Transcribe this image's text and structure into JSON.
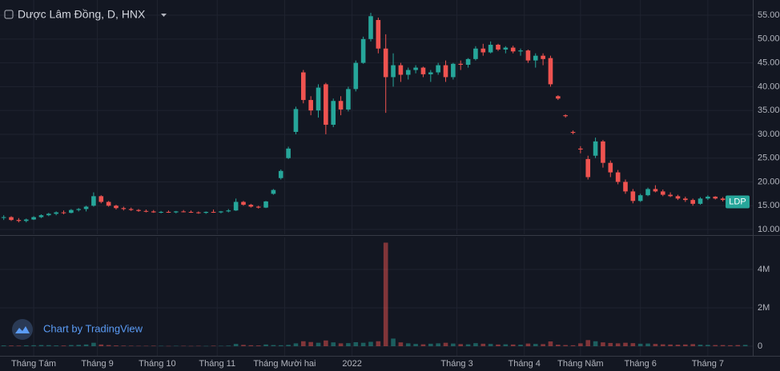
{
  "chart_data": {
    "type": "candlestick",
    "title": "Dược Lâm Đồng, D, HNX",
    "symbol_label": "LDP",
    "watermark": "Chart by TradingView",
    "up_color": "#26a69a",
    "down_color": "#ef5350",
    "grid": true,
    "xlim": [
      -0.5,
      100
    ],
    "xticks": [
      {
        "value": 4,
        "label": "Tháng Tám"
      },
      {
        "value": 12.5,
        "label": "Tháng 9"
      },
      {
        "value": 20.5,
        "label": "Tháng 10"
      },
      {
        "value": 28.5,
        "label": "Tháng 11"
      },
      {
        "value": 37.5,
        "label": "Tháng Mười hai"
      },
      {
        "value": 46.5,
        "label": "2022"
      },
      {
        "value": 60.5,
        "label": "Tháng 3"
      },
      {
        "value": 69.5,
        "label": "Tháng 4"
      },
      {
        "value": 77,
        "label": "Tháng Năm"
      },
      {
        "value": 85,
        "label": "Tháng 6"
      },
      {
        "value": 94,
        "label": "Tháng 7"
      }
    ],
    "ylim": [
      9,
      58.2
    ],
    "yticks": [
      {
        "value": 10,
        "label": "10.00"
      },
      {
        "value": 15,
        "label": "15.00"
      },
      {
        "value": 20,
        "label": "20.00"
      },
      {
        "value": 25,
        "label": "25.00"
      },
      {
        "value": 30,
        "label": "30.00"
      },
      {
        "value": 35,
        "label": "35.00"
      },
      {
        "value": 40,
        "label": "40.00"
      },
      {
        "value": 45,
        "label": "45.00"
      },
      {
        "value": 50,
        "label": "50.00"
      },
      {
        "value": 55,
        "label": "55.00"
      }
    ],
    "y2lim": [
      -500000,
      5670000
    ],
    "y2ticks": [
      0,
      {
        "value": 2000000,
        "label": "2M"
      },
      {
        "value": 4000000,
        "label": "4M"
      }
    ],
    "candles": [
      [
        12.5,
        13,
        12,
        12.6
      ],
      [
        12.6,
        12.8,
        11.8,
        12
      ],
      [
        12,
        12.4,
        11.5,
        11.8
      ],
      [
        11.8,
        12.3,
        11.5,
        12.1
      ],
      [
        12.1,
        12.8,
        12,
        12.6
      ],
      [
        12.6,
        13.2,
        12.4,
        13
      ],
      [
        13,
        13.5,
        12.8,
        13.3
      ],
      [
        13.3,
        13.8,
        13,
        13.6
      ],
      [
        13.6,
        14,
        13.2,
        13.5
      ],
      [
        13.5,
        14.3,
        13.4,
        14.1
      ],
      [
        14.1,
        14.5,
        13.8,
        14.3
      ],
      [
        14.3,
        15,
        13.8,
        14.8
      ],
      [
        15,
        17.8,
        14.8,
        17
      ],
      [
        17,
        17.2,
        15.5,
        15.8
      ],
      [
        15.8,
        16,
        14.8,
        15
      ],
      [
        15,
        15.2,
        14.2,
        14.5
      ],
      [
        14.5,
        14.8,
        14,
        14.3
      ],
      [
        14.3,
        14.6,
        13.9,
        14.1
      ],
      [
        14.1,
        14.3,
        13.7,
        13.9
      ],
      [
        13.9,
        14.2,
        13.6,
        13.8
      ],
      [
        13.8,
        14.1,
        13.5,
        13.6
      ],
      [
        13.6,
        13.9,
        13.4,
        13.7
      ],
      [
        13.7,
        14,
        13.5,
        13.6
      ],
      [
        13.6,
        13.9,
        13.4,
        13.8
      ],
      [
        13.8,
        14.1,
        13.6,
        13.7
      ],
      [
        13.7,
        14,
        13.5,
        13.6
      ],
      [
        13.6,
        13.8,
        13.3,
        13.5
      ],
      [
        13.5,
        13.8,
        13.3,
        13.7
      ],
      [
        13.7,
        14.2,
        13.5,
        13.6
      ],
      [
        13.6,
        13.9,
        13.4,
        13.8
      ],
      [
        13.8,
        14.3,
        13.6,
        14
      ],
      [
        14,
        16.5,
        13.9,
        15.8
      ],
      [
        15.8,
        16,
        15,
        15.2
      ],
      [
        15.2,
        15.4,
        14.6,
        14.8
      ],
      [
        14.8,
        15,
        14.4,
        14.6
      ],
      [
        14.6,
        16,
        14.5,
        15.9
      ],
      [
        17.5,
        18.5,
        17.3,
        18.3
      ],
      [
        20.8,
        22.6,
        20.5,
        22.3
      ],
      [
        25,
        27.4,
        24.8,
        27
      ],
      [
        30.5,
        35.8,
        30,
        35.3
      ],
      [
        43,
        43.5,
        36.5,
        37.2
      ],
      [
        37.2,
        38,
        34,
        35
      ],
      [
        35,
        40.5,
        33.5,
        39.8
      ],
      [
        40.5,
        40.8,
        30,
        32
      ],
      [
        32,
        37.5,
        31.5,
        37
      ],
      [
        37,
        38,
        34,
        35.2
      ],
      [
        35.2,
        40,
        34.8,
        39.5
      ],
      [
        39.5,
        45.5,
        39,
        45
      ],
      [
        45,
        50.5,
        44.8,
        50
      ],
      [
        50,
        55.5,
        49.5,
        54.8
      ],
      [
        54,
        54.5,
        47,
        48
      ],
      [
        48,
        51,
        34.5,
        42
      ],
      [
        42,
        47,
        40,
        44.5
      ],
      [
        44.5,
        45,
        41,
        42.5
      ],
      [
        42.5,
        44,
        41.5,
        43.5
      ],
      [
        43.5,
        44.5,
        42.8,
        44
      ],
      [
        44,
        44.2,
        42,
        42.6
      ],
      [
        42.6,
        43.5,
        41,
        43
      ],
      [
        43,
        45,
        42.5,
        44.5
      ],
      [
        44.5,
        45.5,
        41,
        42
      ],
      [
        42,
        45,
        41.5,
        44.8
      ],
      [
        44.8,
        45.5,
        43.5,
        44.6
      ],
      [
        44.6,
        46,
        44,
        45.8
      ],
      [
        45.8,
        48.5,
        45.5,
        48
      ],
      [
        48,
        49,
        46.5,
        47.2
      ],
      [
        47.2,
        49.5,
        47,
        48.8
      ],
      [
        48.8,
        49,
        47.5,
        47.8
      ],
      [
        47.8,
        48.5,
        47,
        48.2
      ],
      [
        48.2,
        48.6,
        47,
        47.4
      ],
      [
        47.4,
        48,
        46.5,
        47.6
      ],
      [
        47.6,
        47.8,
        45,
        45.5
      ],
      [
        45.5,
        47,
        44,
        46.5
      ],
      [
        46.5,
        47,
        44.5,
        45.8
      ],
      [
        46,
        46.5,
        40,
        40.5
      ],
      [
        38,
        38.2,
        37.2,
        37.5
      ],
      [
        34,
        34.2,
        33.5,
        33.8
      ],
      [
        30.5,
        30.8,
        30,
        30.3
      ],
      [
        27,
        27.5,
        26,
        26.8
      ],
      [
        24.8,
        25.5,
        20.5,
        21
      ],
      [
        25.5,
        29.3,
        25,
        28.5
      ],
      [
        28.5,
        28.8,
        23,
        24
      ],
      [
        24,
        24.5,
        21,
        22
      ],
      [
        22,
        22.5,
        19.5,
        20
      ],
      [
        20,
        20.5,
        17.5,
        18
      ],
      [
        18,
        18.5,
        15.5,
        16
      ],
      [
        16,
        17.5,
        15.8,
        17.2
      ],
      [
        17.2,
        18.8,
        17,
        18.5
      ],
      [
        18.5,
        19.3,
        17.8,
        18
      ],
      [
        18,
        18.4,
        17,
        17.3
      ],
      [
        17.3,
        17.8,
        16.8,
        17
      ],
      [
        17,
        17.3,
        16.2,
        16.5
      ],
      [
        16.5,
        16.9,
        15.8,
        16.2
      ],
      [
        16.2,
        16.5,
        15,
        15.4
      ],
      [
        15.4,
        16.8,
        15.2,
        16.5
      ],
      [
        16.5,
        17.2,
        16.2,
        16.9
      ],
      [
        16.9,
        17,
        16.3,
        16.5
      ],
      [
        16.5,
        16.8,
        15.9,
        16.2
      ],
      [
        16.2,
        16.4,
        15.5,
        15.8
      ],
      [
        15.8,
        16,
        15,
        15.3
      ],
      [
        15.3,
        16,
        15.1,
        15.8
      ]
    ],
    "volume": [
      40000,
      35000,
      30000,
      45000,
      50000,
      60000,
      55000,
      40000,
      35000,
      60000,
      70000,
      90000,
      180000,
      90000,
      60000,
      40000,
      30000,
      25000,
      20000,
      20000,
      25000,
      20000,
      15000,
      20000,
      20000,
      15000,
      20000,
      15000,
      25000,
      20000,
      30000,
      120000,
      70000,
      50000,
      40000,
      90000,
      60000,
      50000,
      70000,
      150000,
      260000,
      220000,
      180000,
      300000,
      200000,
      150000,
      160000,
      210000,
      180000,
      230000,
      260000,
      5400000,
      400000,
      200000,
      150000,
      120000,
      100000,
      130000,
      150000,
      180000,
      140000,
      110000,
      100000,
      160000,
      130000,
      120000,
      90000,
      100000,
      90000,
      80000,
      140000,
      120000,
      110000,
      250000,
      80000,
      60000,
      50000,
      150000,
      320000,
      260000,
      200000,
      170000,
      150000,
      180000,
      160000,
      130000,
      140000,
      120000,
      100000,
      90000,
      80000,
      90000,
      110000,
      80000,
      70000,
      60000,
      60000,
      50000,
      60000,
      70000
    ]
  }
}
